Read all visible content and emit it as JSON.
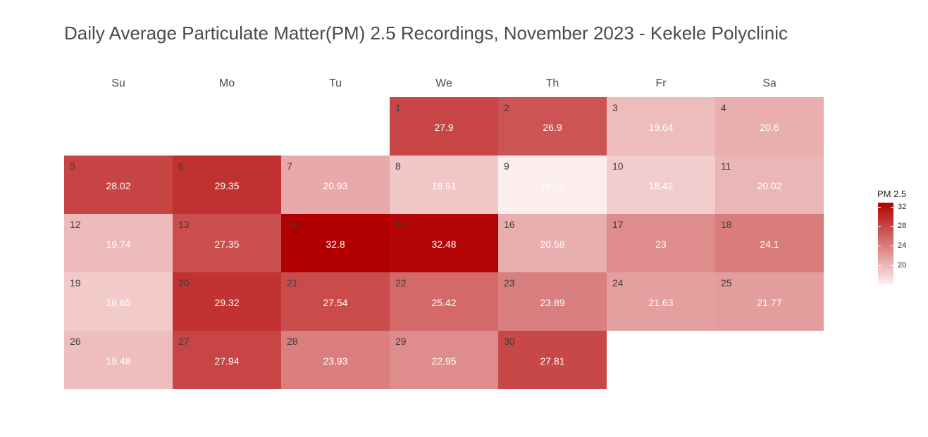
{
  "chart_data": {
    "type": "heatmap",
    "title": "Daily Average Particulate Matter(PM) 2.5 Recordings, November 2023 - Kekele Polyclinic",
    "weekdays": [
      "Su",
      "Mo",
      "Tu",
      "We",
      "Th",
      "Fr",
      "Sa"
    ],
    "first_weekday_index": 3,
    "days": [
      1,
      2,
      3,
      4,
      5,
      6,
      7,
      8,
      9,
      10,
      11,
      12,
      13,
      14,
      15,
      16,
      17,
      18,
      19,
      20,
      21,
      22,
      23,
      24,
      25,
      26,
      27,
      28,
      29,
      30
    ],
    "values": [
      "27.9",
      "26.9",
      "19.64",
      "20.6",
      "28.02",
      "29.35",
      "20.93",
      "18.91",
      "16.11",
      "18.42",
      "20.02",
      "19.74",
      "27.35",
      "32.8",
      "32.48",
      "20.58",
      "23",
      "24.1",
      "18.65",
      "29.32",
      "27.54",
      "25.42",
      "23.89",
      "21.63",
      "21.77",
      "19.48",
      "27.94",
      "23.93",
      "22.95",
      "27.81"
    ],
    "legend": {
      "title": "PM 2.5",
      "min": 16.11,
      "max": 32.8,
      "ticks": [
        "32",
        "28",
        "24",
        "20"
      ],
      "low_color": "#fdeeee",
      "high_color": "#b20000"
    }
  }
}
